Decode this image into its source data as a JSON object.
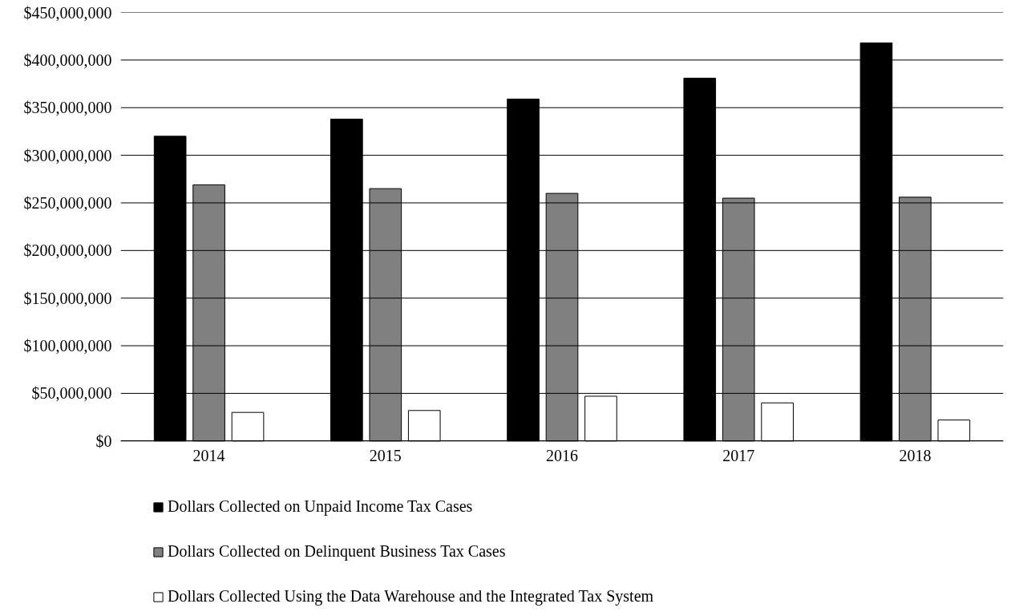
{
  "chart_data": {
    "type": "bar",
    "categories": [
      "2014",
      "2015",
      "2016",
      "2017",
      "2018"
    ],
    "series": [
      {
        "name": "Dollars Collected on Unpaid Income Tax Cases",
        "color": "#000000",
        "values": [
          320000000,
          338000000,
          359000000,
          381000000,
          418000000
        ]
      },
      {
        "name": "Dollars Collected on Delinquent Business Tax Cases",
        "color": "#808080",
        "values": [
          269000000,
          265000000,
          260000000,
          255000000,
          256000000
        ]
      },
      {
        "name": "Dollars Collected Using the Data Warehouse and the Integrated Tax System",
        "color": "#ffffff",
        "values": [
          30000000,
          32000000,
          47000000,
          40000000,
          22000000
        ]
      }
    ],
    "ylim": [
      0,
      450000000
    ],
    "yticks": [
      {
        "value": 0,
        "label": "$0"
      },
      {
        "value": 50000000,
        "label": "$50,000,000"
      },
      {
        "value": 100000000,
        "label": "$100,000,000"
      },
      {
        "value": 150000000,
        "label": "$150,000,000"
      },
      {
        "value": 200000000,
        "label": "$200,000,000"
      },
      {
        "value": 250000000,
        "label": "$250,000,000"
      },
      {
        "value": 300000000,
        "label": "$300,000,000"
      },
      {
        "value": 350000000,
        "label": "$350,000,000"
      },
      {
        "value": 400000000,
        "label": "$400,000,000"
      },
      {
        "value": 450000000,
        "label": "$450,000,000"
      }
    ],
    "grid": "y",
    "legend": "bottom"
  }
}
